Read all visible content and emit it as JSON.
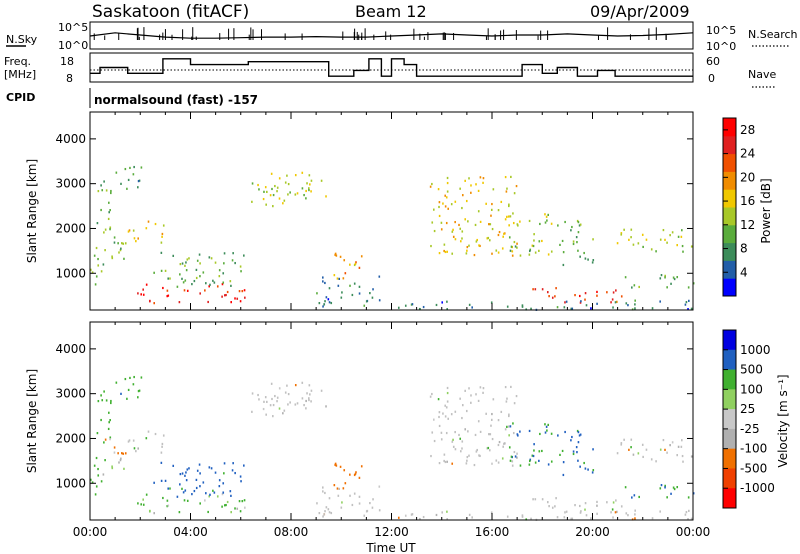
{
  "header": {
    "station": "Saskatoon (fitACF)",
    "beam": "Beam 12",
    "date": "09/Apr/2009"
  },
  "noise_panel": {
    "left_label": "N.Sky",
    "right_label": "N.Search",
    "left_ticks": [
      "10^5",
      "10^0"
    ],
    "right_ticks": [
      "10^5",
      "10^0"
    ]
  },
  "freq_panel": {
    "left_label_top": "Freq.",
    "left_label_bottom": "[MHz]",
    "right_label": "Nave",
    "left_ticks": [
      "18",
      "8"
    ],
    "right_ticks": [
      "60",
      "0"
    ]
  },
  "cpid": {
    "label": "CPID",
    "text": "normalsound (fast) -157"
  },
  "colors": {
    "power_scale": [
      "#0000ff",
      "#225ea8",
      "#3c8c5a",
      "#5aac3c",
      "#a8c828",
      "#f0c800",
      "#f08c00",
      "#f05000",
      "#e02020",
      "#ff0000"
    ],
    "velocity_scale": [
      "#0000e0",
      "#2060c0",
      "#208040",
      "#40b030",
      "#90d060",
      "#c8c8c8",
      "#b0b0b0",
      "#f0a000",
      "#f07000",
      "#f04000",
      "#ff0000"
    ],
    "ground_scatter": "#c0c0c0"
  },
  "chart_data": [
    {
      "type": "line",
      "panel": "noise",
      "x_units": "hours UT",
      "series": [
        {
          "name": "N.Sky",
          "x": [
            0,
            1,
            2,
            3,
            4,
            5,
            6,
            7,
            8,
            9,
            10,
            11,
            12,
            13,
            14,
            15,
            16,
            17,
            18,
            19,
            20,
            21,
            22,
            23,
            24
          ],
          "y": [
            2.4,
            3.0,
            2.6,
            2.2,
            2.0,
            2.0,
            2.1,
            2.2,
            2.2,
            2.3,
            2.2,
            2.2,
            2.4,
            2.6,
            2.8,
            2.6,
            2.4,
            2.6,
            2.6,
            2.8,
            2.6,
            2.4,
            2.5,
            2.7,
            3.0
          ]
        }
      ],
      "ylim": [
        0,
        5
      ]
    },
    {
      "type": "line",
      "panel": "frequency",
      "x_units": "hours UT",
      "series": [
        {
          "name": "Freq.",
          "x": [
            0,
            0.4,
            0.4,
            1.5,
            1.5,
            2.9,
            2.9,
            4.0,
            4.0,
            6.3,
            6.3,
            9.5,
            9.5,
            10.5,
            10.5,
            11.1,
            11.1,
            11.6,
            11.6,
            12.0,
            12.0,
            12.5,
            12.5,
            13.0,
            13.0,
            17.2,
            17.2,
            18.0,
            18.0,
            18.6,
            18.6,
            19.4,
            19.4,
            20.2,
            20.2,
            20.9,
            20.9,
            24.0
          ],
          "y": [
            11,
            11,
            13,
            13,
            11,
            11,
            16,
            16,
            14,
            14,
            15,
            15,
            10,
            10,
            12,
            12,
            16,
            16,
            10,
            10,
            16,
            16,
            14,
            14,
            10,
            10,
            14,
            14,
            11,
            11,
            13,
            13,
            10,
            10,
            12,
            12,
            10,
            10
          ]
        }
      ],
      "ylim": [
        8,
        18
      ]
    },
    {
      "type": "heatmap",
      "title": "",
      "panel": "power",
      "xlabel": "",
      "ylabel": "Slant Range [km]",
      "xlim": [
        0,
        24
      ],
      "ylim": [
        180,
        4600
      ],
      "x_tick_labels": [
        "00:00",
        "04:00",
        "08:00",
        "12:00",
        "16:00",
        "20:00",
        "00:00"
      ],
      "y_ticks": [
        1000,
        2000,
        3000,
        4000
      ],
      "colorbar_label": "Power [dB]",
      "colorbar_ticks": [
        4,
        8,
        12,
        16,
        20,
        24,
        28
      ],
      "colorbar_range": [
        0,
        30
      ]
    },
    {
      "type": "heatmap",
      "title": "",
      "panel": "velocity",
      "xlabel": "Time UT",
      "ylabel": "Slant Range [km]",
      "xlim": [
        0,
        24
      ],
      "ylim": [
        180,
        4600
      ],
      "x_tick_labels": [
        "00:00",
        "04:00",
        "08:00",
        "12:00",
        "16:00",
        "20:00",
        "00:00"
      ],
      "y_ticks": [
        1000,
        2000,
        3000,
        4000
      ],
      "colorbar_label": "Velocity [m s⁻¹]",
      "colorbar_ticks": [
        "1000",
        "500",
        "100",
        "25",
        "-25",
        "-100",
        "-500",
        "-1000"
      ]
    }
  ],
  "echo_regions": [
    {
      "t": [
        0.0,
        0.5
      ],
      "r": [
        700,
        1600
      ],
      "p": 14,
      "v": 300,
      "gs": false
    },
    {
      "t": [
        0.2,
        0.8
      ],
      "r": [
        1500,
        3200
      ],
      "p": 10,
      "v": 300,
      "gs": false
    },
    {
      "t": [
        0.5,
        1.4
      ],
      "r": [
        1200,
        2200
      ],
      "p": 12,
      "v": -50,
      "gs": false
    },
    {
      "t": [
        1.0,
        2.2
      ],
      "r": [
        2800,
        3400
      ],
      "p": 8,
      "v": 400,
      "gs": false
    },
    {
      "t": [
        1.5,
        3.0
      ],
      "r": [
        1700,
        2200
      ],
      "p": 16,
      "v": 30,
      "gs": true
    },
    {
      "t": [
        1.8,
        6.2
      ],
      "r": [
        350,
        800
      ],
      "p": 26,
      "v": 100,
      "gs": false
    },
    {
      "t": [
        2.5,
        6.2
      ],
      "r": [
        700,
        1500
      ],
      "p": 10,
      "v": 600,
      "gs": false
    },
    {
      "t": [
        6.3,
        9.5
      ],
      "r": [
        2500,
        3300
      ],
      "p": 14,
      "v": 0,
      "gs": true
    },
    {
      "t": [
        9.5,
        10.8
      ],
      "r": [
        800,
        1500
      ],
      "p": 18,
      "v": -400,
      "gs": false
    },
    {
      "t": [
        9.0,
        11.5
      ],
      "r": [
        250,
        1000
      ],
      "p": 6,
      "v": 0,
      "gs": true
    },
    {
      "t": [
        13.5,
        17.0
      ],
      "r": [
        1400,
        3200
      ],
      "p": 16,
      "v": 0,
      "gs": true
    },
    {
      "t": [
        16.5,
        18.5
      ],
      "r": [
        1400,
        2400
      ],
      "p": 12,
      "v": 500,
      "gs": false
    },
    {
      "t": [
        17.5,
        21.5
      ],
      "r": [
        350,
        700
      ],
      "p": 24,
      "v": 0,
      "gs": true
    },
    {
      "t": [
        18.5,
        20.0
      ],
      "r": [
        1200,
        2200
      ],
      "p": 10,
      "v": 600,
      "gs": false
    },
    {
      "t": [
        20.8,
        24.0
      ],
      "r": [
        1500,
        2000
      ],
      "p": 14,
      "v": 0,
      "gs": true
    },
    {
      "t": [
        21.0,
        24.0
      ],
      "r": [
        700,
        1000
      ],
      "p": 10,
      "v": 500,
      "gs": false
    },
    {
      "t": [
        12.0,
        24.0
      ],
      "r": [
        200,
        420
      ],
      "p": 6,
      "v": 0,
      "gs": true
    }
  ]
}
